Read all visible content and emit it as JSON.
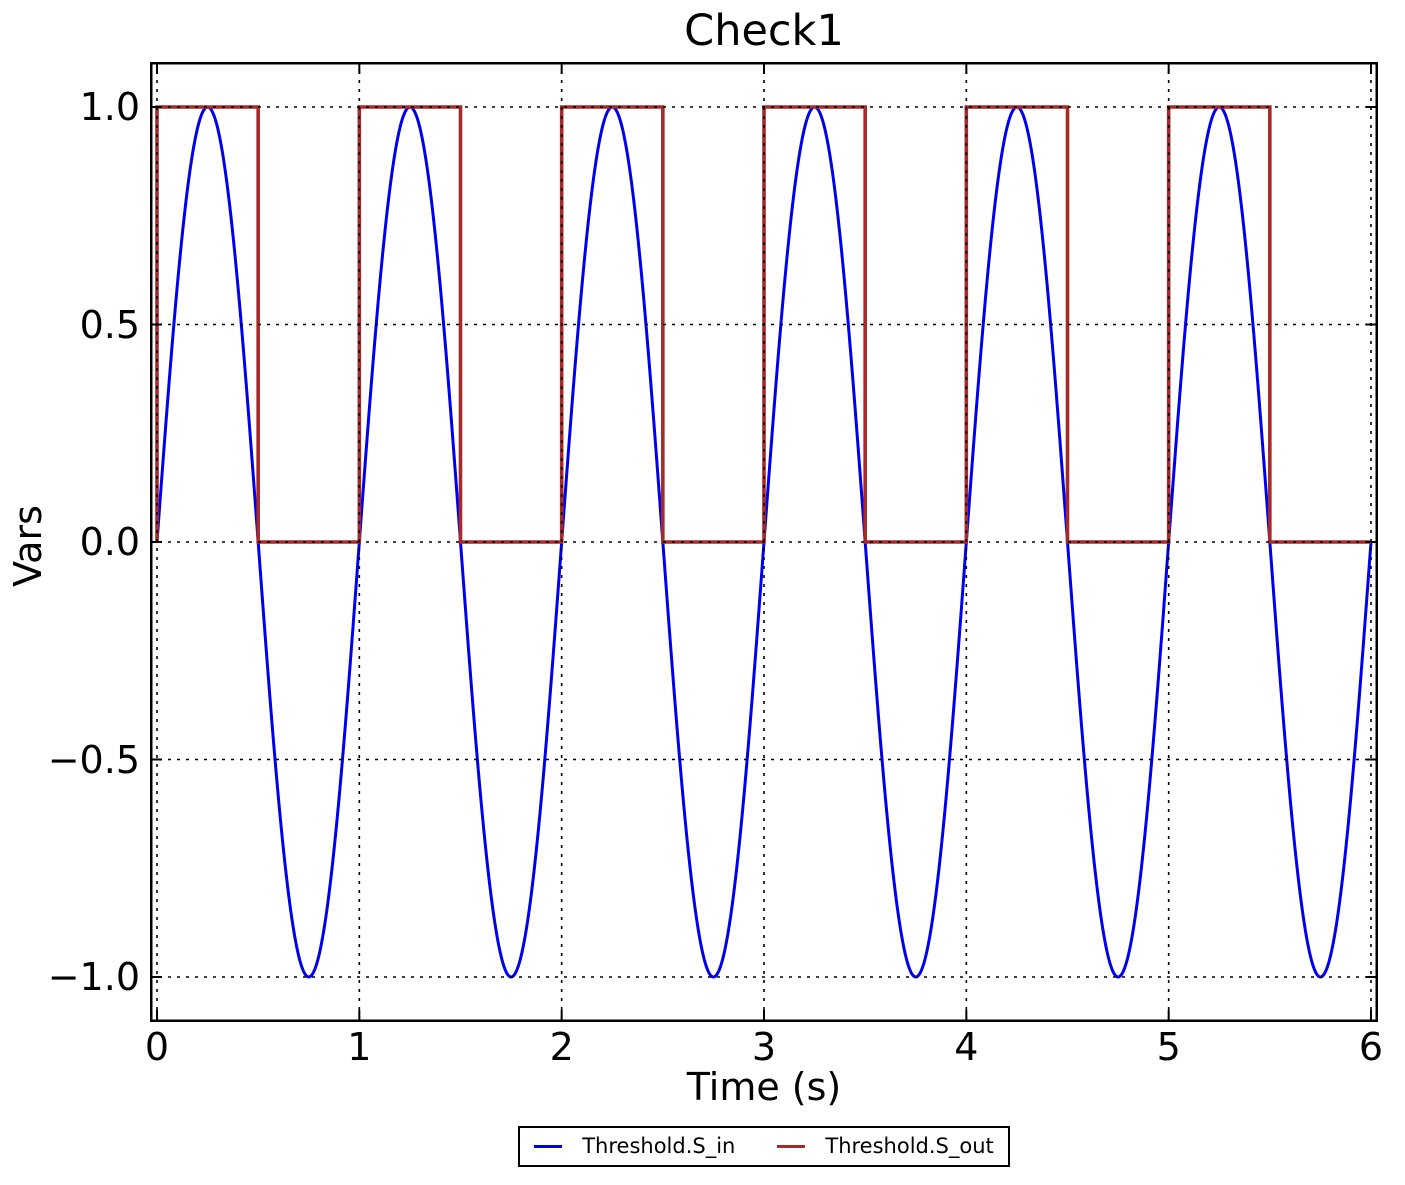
{
  "figure": {
    "background": "#ffffff",
    "text_color": "#000000"
  },
  "chart_data": {
    "type": "line",
    "title": "Check1",
    "xlabel": "Time (s)",
    "ylabel": "Vars",
    "xlim": [
      0,
      6
    ],
    "ylim": [
      -1,
      1
    ],
    "xticks": [
      0,
      1,
      2,
      3,
      4,
      5,
      6
    ],
    "xtick_labels": [
      "0",
      "1",
      "2",
      "3",
      "4",
      "5",
      "6"
    ],
    "yticks": [
      1.0,
      0.5,
      0.0,
      -0.5,
      -1.0
    ],
    "ytick_labels": [
      "1.0",
      "0.5",
      "0.0",
      "−0.5",
      "−1.0"
    ],
    "grid": {
      "visible": true,
      "style": "dotted",
      "color": "#000000",
      "on_top": true
    },
    "frame_color": "#000000",
    "legend": {
      "position": "bottom-center",
      "border_color": "#000000",
      "background": "#ffffff"
    },
    "series": [
      {
        "name": "Threshold.S_in",
        "color": "#0000EE",
        "line_width": 3,
        "signal": {
          "kind": "sine",
          "amplitude": 1,
          "frequency_hz": 1,
          "phase_rad": 0,
          "t_start": 0,
          "t_end": 6
        }
      },
      {
        "name": "Threshold.S_out",
        "color": "#A52A2A",
        "line_width": 3.6,
        "signal": {
          "kind": "piecewise",
          "points": [
            [
              0,
              0
            ],
            [
              0,
              1
            ],
            [
              0.5,
              1
            ],
            [
              0.5,
              0
            ],
            [
              1,
              0
            ],
            [
              1,
              1
            ],
            [
              1.5,
              1
            ],
            [
              1.5,
              0
            ],
            [
              2,
              0
            ],
            [
              2,
              1
            ],
            [
              2.5,
              1
            ],
            [
              2.5,
              0
            ],
            [
              3,
              0
            ],
            [
              3,
              1
            ],
            [
              3.5,
              1
            ],
            [
              3.5,
              0
            ],
            [
              4,
              0
            ],
            [
              4,
              1
            ],
            [
              4.5,
              1
            ],
            [
              4.5,
              0
            ],
            [
              5,
              0
            ],
            [
              5,
              1
            ],
            [
              5.5,
              1
            ],
            [
              5.5,
              0
            ],
            [
              6,
              0
            ]
          ]
        }
      }
    ]
  }
}
